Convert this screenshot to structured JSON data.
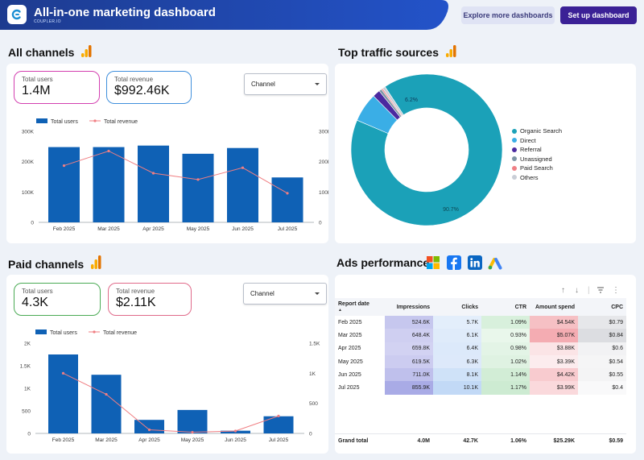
{
  "header": {
    "title": "All-in-one marketing dashboard",
    "subtitle": "COUPLER.IO",
    "explore_label": "Explore more dashboards",
    "setup_label": "Set up dashboard"
  },
  "all_channels": {
    "title": "All channels",
    "kpi_users_label": "Total users",
    "kpi_users_value": "1.4M",
    "kpi_revenue_label": "Total revenue",
    "kpi_revenue_value": "$992.46K",
    "dropdown_value": "Channel"
  },
  "traffic": {
    "title": "Top traffic sources",
    "legend": [
      {
        "label": "Organic Search",
        "color": "#1ba1b8"
      },
      {
        "label": "Direct",
        "color": "#3aaee6"
      },
      {
        "label": "Referral",
        "color": "#4b2aa0"
      },
      {
        "label": "Unassigned",
        "color": "#7e96a6"
      },
      {
        "label": "Paid Search",
        "color": "#ef7f85"
      },
      {
        "label": "Others",
        "color": "#c9ced6"
      }
    ],
    "label_large": "90.7%",
    "label_small": "6.2%"
  },
  "paid_channels": {
    "title": "Paid channels",
    "kpi_users_label": "Total users",
    "kpi_users_value": "4.3K",
    "kpi_revenue_label": "Total revenue",
    "kpi_revenue_value": "$2.11K",
    "dropdown_value": "Channel"
  },
  "ads": {
    "title": "Ads performance",
    "columns": [
      "Report date",
      "Impressions",
      "Clicks",
      "CTR",
      "Amount spend",
      "CPC"
    ],
    "rows": [
      [
        "Feb 2025",
        "524.6K",
        "5.7K",
        "1.09%",
        "$4.54K",
        "$0.79"
      ],
      [
        "Mar 2025",
        "648.4K",
        "6.1K",
        "0.93%",
        "$5.07K",
        "$0.84"
      ],
      [
        "Apr 2025",
        "659.8K",
        "6.4K",
        "0.98%",
        "$3.88K",
        "$0.6"
      ],
      [
        "May 2025",
        "619.5K",
        "6.3K",
        "1.02%",
        "$3.39K",
        "$0.54"
      ],
      [
        "Jun 2025",
        "711.0K",
        "8.1K",
        "1.14%",
        "$4.42K",
        "$0.55"
      ],
      [
        "Jul 2025",
        "855.9K",
        "10.1K",
        "1.17%",
        "$3.99K",
        "$0.4"
      ]
    ],
    "grand_total": [
      "Grand total",
      "4.0M",
      "42.7K",
      "1.06%",
      "$25.29K",
      "$0.59"
    ]
  },
  "chart_data": [
    {
      "type": "bar",
      "categories": [
        "Feb 2025",
        "Mar 2025",
        "Apr 2025",
        "May 2025",
        "Jun 2025",
        "Jul 2025"
      ],
      "series": [
        {
          "name": "Total users",
          "values": [
            248000,
            248000,
            253000,
            226000,
            245000,
            148000
          ],
          "color": "#0f61b5"
        },
        {
          "name": "Total revenue",
          "values": [
            187000,
            235000,
            162000,
            141000,
            180000,
            96000
          ],
          "color": "#f07e82"
        }
      ],
      "ylim": [
        0,
        300000
      ],
      "yticks": [
        "0",
        "100K",
        "200K",
        "300K"
      ],
      "y2ticks": [
        "0",
        "100K",
        "200K",
        "300K"
      ],
      "legend_position": "top-left"
    },
    {
      "type": "bar",
      "categories": [
        "Feb 2025",
        "Mar 2025",
        "Apr 2025",
        "May 2025",
        "Jun 2025",
        "Jul 2025"
      ],
      "series": [
        {
          "name": "Total users",
          "values": [
            1750,
            1300,
            300,
            520,
            60,
            380
          ],
          "color": "#0f61b5"
        },
        {
          "name": "Total revenue",
          "values": [
            1000,
            650,
            60,
            20,
            40,
            290
          ],
          "color": "#f07e82"
        }
      ],
      "ylim": [
        0,
        2000
      ],
      "y2lim": [
        0,
        1500
      ],
      "yticks": [
        "0",
        "500",
        "1K",
        "1.5K",
        "2K"
      ],
      "y2ticks": [
        "0",
        "500",
        "1K",
        "1.5K"
      ],
      "legend_position": "top-left"
    },
    {
      "type": "pie",
      "categories": [
        "Organic Search",
        "Direct",
        "Referral",
        "Unassigned",
        "Paid Search",
        "Others"
      ],
      "values": [
        90.7,
        6.2,
        1.6,
        0.6,
        0.3,
        0.6
      ]
    }
  ]
}
